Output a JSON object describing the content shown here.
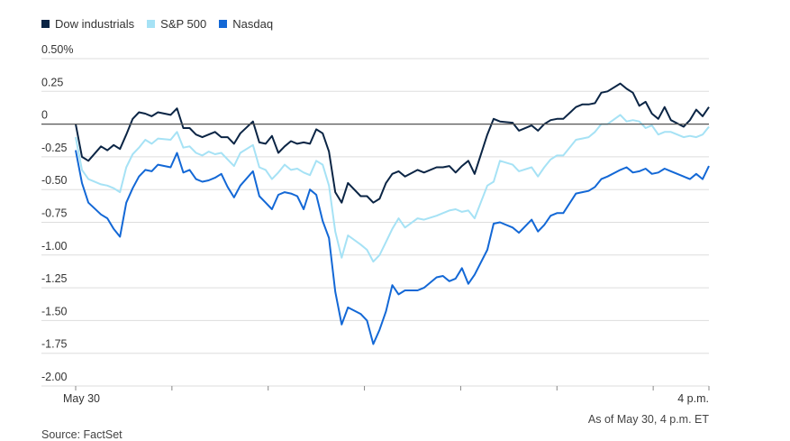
{
  "colors": {
    "dow": "#0b2545",
    "sp500": "#a6e2f5",
    "nasdaq": "#1368d6",
    "zero_line": "#555555",
    "grid": "#dddddd"
  },
  "legend": [
    {
      "name": "Dow industrials",
      "color": "#0b2545"
    },
    {
      "name": "S&P 500",
      "color": "#a6e2f5"
    },
    {
      "name": "Nasdaq",
      "color": "#1368d6"
    }
  ],
  "footer": {
    "as_of": "As of May 30, 4 p.m. ET",
    "source": "Source: FactSet"
  },
  "chart_data": {
    "type": "line",
    "title": "",
    "xlabel": "",
    "ylabel": "",
    "ylim": [
      -2.0,
      0.5
    ],
    "yticks": [
      0.5,
      0.25,
      0,
      -0.25,
      -0.5,
      -0.75,
      -1.0,
      -1.25,
      -1.5,
      -1.75,
      -2.0
    ],
    "ytick_labels": [
      "0.50%",
      "0.25",
      "0",
      "-0.25",
      "-0.50",
      "-0.75",
      "-1.00",
      "-1.25",
      "-1.50",
      "-1.75",
      "-2.00"
    ],
    "grid": true,
    "legend_position": "top-left",
    "x_start_label": "May 30",
    "x_end_label": "4 p.m.",
    "x_range": [
      0,
      100
    ],
    "series": [
      {
        "name": "Dow industrials",
        "x": [
          0,
          1,
          2,
          4,
          5,
          6,
          7,
          8,
          9,
          10,
          11,
          12,
          13,
          15,
          16,
          17,
          18,
          19,
          20,
          21,
          22,
          23,
          24,
          25,
          26,
          28,
          29,
          30,
          31,
          32,
          33,
          34,
          35,
          36,
          37,
          38,
          39,
          40,
          41,
          42,
          43,
          45,
          46,
          47,
          48,
          49,
          50,
          51,
          52,
          54,
          55,
          57,
          58,
          59,
          60,
          61,
          62,
          63,
          65,
          66,
          67,
          69,
          70,
          72,
          73,
          74,
          75,
          76,
          77,
          79,
          80,
          81,
          82,
          83,
          84,
          86,
          87,
          88,
          89,
          90,
          91,
          92,
          93,
          94,
          96,
          97,
          98,
          99,
          100
        ],
        "y": [
          0.0,
          -0.25,
          -0.28,
          -0.17,
          -0.2,
          -0.16,
          -0.19,
          -0.08,
          0.04,
          0.09,
          0.08,
          0.06,
          0.09,
          0.07,
          0.12,
          -0.03,
          -0.03,
          -0.08,
          -0.1,
          -0.08,
          -0.06,
          -0.1,
          -0.1,
          -0.15,
          -0.07,
          0.02,
          -0.14,
          -0.15,
          -0.09,
          -0.22,
          -0.17,
          -0.13,
          -0.15,
          -0.14,
          -0.15,
          -0.04,
          -0.07,
          -0.21,
          -0.52,
          -0.6,
          -0.45,
          -0.55,
          -0.55,
          -0.6,
          -0.57,
          -0.45,
          -0.38,
          -0.36,
          -0.4,
          -0.35,
          -0.37,
          -0.33,
          -0.33,
          -0.32,
          -0.37,
          -0.32,
          -0.28,
          -0.38,
          -0.08,
          0.04,
          0.02,
          0.01,
          -0.05,
          -0.01,
          -0.05,
          0.0,
          0.03,
          0.04,
          0.04,
          0.13,
          0.15,
          0.15,
          0.16,
          0.24,
          0.25,
          0.31,
          0.27,
          0.24,
          0.14,
          0.17,
          0.08,
          0.04,
          0.13,
          0.03,
          -0.02,
          0.03,
          0.11,
          0.06,
          0.13
        ]
      },
      {
        "name": "S&P 500",
        "x": [
          0,
          1,
          2,
          4,
          5,
          6,
          7,
          8,
          9,
          10,
          11,
          12,
          13,
          15,
          16,
          17,
          18,
          19,
          20,
          21,
          22,
          23,
          24,
          25,
          26,
          28,
          29,
          30,
          31,
          32,
          33,
          34,
          35,
          36,
          37,
          38,
          39,
          40,
          41,
          42,
          43,
          45,
          46,
          47,
          48,
          49,
          50,
          51,
          52,
          54,
          55,
          57,
          58,
          59,
          60,
          61,
          62,
          63,
          65,
          66,
          67,
          69,
          70,
          72,
          73,
          74,
          75,
          76,
          77,
          79,
          80,
          81,
          82,
          83,
          84,
          86,
          87,
          88,
          89,
          90,
          91,
          92,
          93,
          94,
          96,
          97,
          98,
          99,
          100
        ],
        "y": [
          -0.1,
          -0.35,
          -0.42,
          -0.46,
          -0.47,
          -0.49,
          -0.52,
          -0.33,
          -0.23,
          -0.18,
          -0.12,
          -0.15,
          -0.11,
          -0.12,
          -0.06,
          -0.18,
          -0.17,
          -0.22,
          -0.24,
          -0.21,
          -0.23,
          -0.22,
          -0.27,
          -0.32,
          -0.22,
          -0.16,
          -0.33,
          -0.35,
          -0.42,
          -0.37,
          -0.31,
          -0.35,
          -0.34,
          -0.37,
          -0.39,
          -0.28,
          -0.31,
          -0.47,
          -0.82,
          -1.02,
          -0.85,
          -0.92,
          -0.96,
          -1.05,
          -1.0,
          -0.9,
          -0.8,
          -0.72,
          -0.79,
          -0.72,
          -0.73,
          -0.7,
          -0.68,
          -0.66,
          -0.65,
          -0.67,
          -0.66,
          -0.72,
          -0.47,
          -0.44,
          -0.28,
          -0.31,
          -0.36,
          -0.33,
          -0.4,
          -0.33,
          -0.27,
          -0.24,
          -0.24,
          -0.12,
          -0.11,
          -0.1,
          -0.06,
          0.0,
          0.0,
          0.07,
          0.02,
          0.03,
          0.02,
          -0.03,
          -0.01,
          -0.08,
          -0.06,
          -0.06,
          -0.1,
          -0.09,
          -0.1,
          -0.08,
          -0.02
        ]
      },
      {
        "name": "Nasdaq",
        "x": [
          0,
          1,
          2,
          4,
          5,
          6,
          7,
          8,
          9,
          10,
          11,
          12,
          13,
          15,
          16,
          17,
          18,
          19,
          20,
          21,
          22,
          23,
          24,
          25,
          26,
          28,
          29,
          30,
          31,
          32,
          33,
          34,
          35,
          36,
          37,
          38,
          39,
          40,
          41,
          42,
          43,
          45,
          46,
          47,
          48,
          49,
          50,
          51,
          52,
          54,
          55,
          57,
          58,
          59,
          60,
          61,
          62,
          63,
          65,
          66,
          67,
          69,
          70,
          72,
          73,
          74,
          75,
          76,
          77,
          79,
          80,
          81,
          82,
          83,
          84,
          86,
          87,
          88,
          89,
          90,
          91,
          92,
          93,
          94,
          96,
          97,
          98,
          99,
          100
        ],
        "y": [
          -0.2,
          -0.45,
          -0.6,
          -0.69,
          -0.72,
          -0.8,
          -0.86,
          -0.6,
          -0.49,
          -0.4,
          -0.35,
          -0.36,
          -0.31,
          -0.33,
          -0.22,
          -0.37,
          -0.35,
          -0.42,
          -0.44,
          -0.43,
          -0.41,
          -0.38,
          -0.48,
          -0.56,
          -0.47,
          -0.36,
          -0.55,
          -0.6,
          -0.65,
          -0.54,
          -0.52,
          -0.53,
          -0.55,
          -0.65,
          -0.5,
          -0.54,
          -0.74,
          -0.87,
          -1.28,
          -1.53,
          -1.4,
          -1.45,
          -1.5,
          -1.68,
          -1.57,
          -1.43,
          -1.23,
          -1.3,
          -1.27,
          -1.27,
          -1.25,
          -1.17,
          -1.16,
          -1.2,
          -1.18,
          -1.1,
          -1.22,
          -1.15,
          -0.96,
          -0.76,
          -0.75,
          -0.79,
          -0.83,
          -0.73,
          -0.82,
          -0.77,
          -0.7,
          -0.68,
          -0.68,
          -0.53,
          -0.52,
          -0.51,
          -0.48,
          -0.42,
          -0.4,
          -0.35,
          -0.33,
          -0.37,
          -0.36,
          -0.34,
          -0.38,
          -0.37,
          -0.34,
          -0.36,
          -0.4,
          -0.42,
          -0.38,
          -0.42,
          -0.32
        ]
      }
    ]
  }
}
